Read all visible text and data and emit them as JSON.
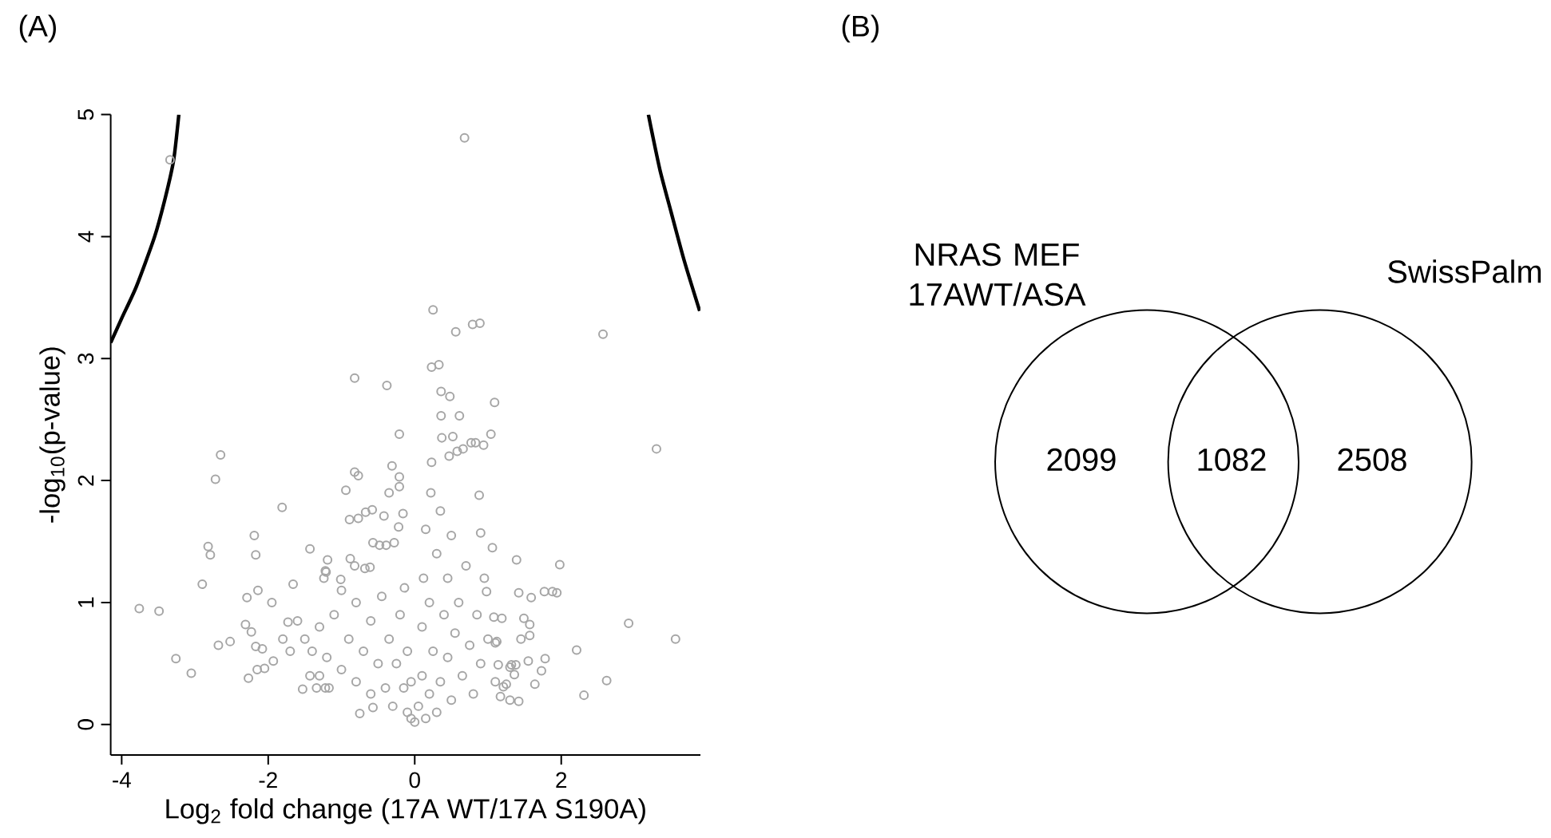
{
  "chart_data": [
    {
      "type": "scatter",
      "title": "(A)",
      "xlabel": "Log$_{2}$ fold change (17A WT/17A S190A)",
      "ylabel": "-log$_{10}$(p-value)",
      "xlim": [
        -4.15,
        3.9
      ],
      "ylim": [
        -0.25,
        5
      ],
      "xticks": [
        -4,
        -2,
        0,
        2
      ],
      "yticks": [
        0,
        1,
        2,
        3,
        4,
        5
      ],
      "marker": "circle",
      "series": [
        {
          "type": "scatter",
          "color": "#a6a6a6",
          "x": [
            0.68,
            -3.34,
            0.25,
            0.56,
            0.79,
            0.89,
            2.57,
            0.23,
            0.33,
            -0.82,
            -0.38,
            0.36,
            0.48,
            1.09,
            1.04,
            0.94,
            3.3,
            0.88,
            0.9,
            1.06,
            1.39,
            1.98,
            1.42,
            1.59,
            1.77,
            1.88,
            1.94,
            1.49,
            1.57,
            2.92,
            3.56,
            1.57,
            1.45,
            2.21,
            1.78,
            1.55,
            1.32,
            1.38,
            1.73,
            1.64,
            2.62,
            2.31,
            1.17,
            1.3,
            1.42,
            1.21,
            1.25,
            1.08,
            1.19,
            0.98,
            1.1,
            1.12,
            1.14,
            1.3,
            1.36,
            -3.76,
            -3.49,
            -3.26,
            -3.05,
            -2.9,
            -2.82,
            -2.79,
            -2.72,
            -2.65,
            -2.68,
            -2.52,
            -2.29,
            -2.31,
            -2.23,
            -2.27,
            -2.19,
            -2.17,
            -2.14,
            -2.17,
            -2.08,
            -2.15,
            -2.05,
            -1.93,
            -1.95,
            -1.81,
            -1.43,
            -1.53,
            -1.66,
            -1.73,
            -1.21,
            -1.24,
            -0.94,
            -0.82,
            -0.77,
            -0.89,
            -0.77,
            -0.67,
            -0.58,
            -0.75,
            -1.34,
            -1.43,
            -0.88,
            -0.82,
            -1.01,
            0.36,
            0.61,
            -0.21,
            0.37,
            0.52,
            0.47,
            0.58,
            0.66,
            0.77,
            0.83,
            0.23,
            -0.31,
            -0.21,
            -0.35,
            -0.21,
            -0.42,
            -0.16,
            -0.22,
            -1.19,
            -1.22,
            -0.57,
            -0.48,
            -0.39,
            -0.28,
            -0.68,
            -0.61,
            -0.14,
            -0.57,
            -1.22,
            -1.17,
            -1.5,
            -1.4,
            -1.3,
            -1.2,
            -1.1,
            -1.0,
            -0.9,
            -0.8,
            -0.8,
            -0.7,
            -0.6,
            -0.6,
            -0.5,
            -0.45,
            -0.4,
            -0.35,
            -0.3,
            -0.25,
            -0.2,
            -0.15,
            -0.1,
            -0.1,
            -0.05,
            -0.05,
            0.0,
            0.05,
            0.1,
            0.1,
            0.12,
            0.15,
            0.15,
            0.2,
            0.2,
            0.22,
            0.25,
            0.3,
            0.3,
            0.35,
            0.35,
            0.4,
            0.45,
            0.45,
            0.5,
            0.5,
            0.55,
            0.6,
            0.65,
            0.7,
            0.75,
            0.8,
            0.85,
            0.9,
            -1.6,
            -1.7,
            -1.8,
            -1.3,
            -1.0,
            1.0,
            1.1,
            0.95
          ],
          "values": [
            4.81,
            4.63,
            3.4,
            3.22,
            3.28,
            3.29,
            3.2,
            2.93,
            2.95,
            2.84,
            2.78,
            2.73,
            2.69,
            2.64,
            2.38,
            2.29,
            2.26,
            1.88,
            1.57,
            1.45,
            1.35,
            1.31,
            1.08,
            1.04,
            1.09,
            1.09,
            1.08,
            0.87,
            0.82,
            0.83,
            0.7,
            0.73,
            0.7,
            0.61,
            0.54,
            0.52,
            0.49,
            0.49,
            0.44,
            0.33,
            0.36,
            0.24,
            0.23,
            0.2,
            0.19,
            0.31,
            0.33,
            0.88,
            0.87,
            1.09,
            0.67,
            0.68,
            0.49,
            0.47,
            0.41,
            0.95,
            0.93,
            0.54,
            0.42,
            1.15,
            1.46,
            1.39,
            2.01,
            2.21,
            0.65,
            0.68,
            1.04,
            0.82,
            0.76,
            0.38,
            1.55,
            1.39,
            1.1,
            0.64,
            0.62,
            0.45,
            0.46,
            0.52,
            1.0,
            1.78,
            1.44,
            0.29,
            1.15,
            0.84,
            1.25,
            1.2,
            1.92,
            2.07,
            2.04,
            1.68,
            1.69,
            1.74,
            1.76,
            0.09,
            0.3,
            0.4,
            1.36,
            1.3,
            1.19,
            2.53,
            2.53,
            2.38,
            2.35,
            2.36,
            2.2,
            2.24,
            2.26,
            2.31,
            2.31,
            2.15,
            2.12,
            2.03,
            1.9,
            1.95,
            1.71,
            1.73,
            1.62,
            1.35,
            1.26,
            1.49,
            1.47,
            1.47,
            1.49,
            1.28,
            1.29,
            1.12,
            0.14,
            0.3,
            0.3,
            0.7,
            0.6,
            0.8,
            0.55,
            0.9,
            0.45,
            0.7,
            1.0,
            0.35,
            0.6,
            0.85,
            0.25,
            0.5,
            1.05,
            0.3,
            0.7,
            0.15,
            0.5,
            0.9,
            0.3,
            0.6,
            0.1,
            0.35,
            0.05,
            0.02,
            0.15,
            0.4,
            0.8,
            1.2,
            1.6,
            0.05,
            0.25,
            1.0,
            1.9,
            0.6,
            1.4,
            0.1,
            1.75,
            0.35,
            0.9,
            1.2,
            0.55,
            0.2,
            1.55,
            0.75,
            1.0,
            0.4,
            1.3,
            0.65,
            0.25,
            0.9,
            0.5,
            0.85,
            0.6,
            0.7,
            0.4,
            1.1,
            0.7,
            0.35,
            1.2
          ]
        },
        {
          "type": "line",
          "color": "#000000",
          "marker": "none",
          "x": [
            -4.15,
            -4.0,
            -3.8,
            -3.55,
            -3.4,
            -3.29,
            -3.22
          ],
          "values": [
            3.13,
            3.33,
            3.59,
            4.0,
            4.33,
            4.63,
            5.0
          ]
        },
        {
          "type": "line",
          "color": "#000000",
          "marker": "none",
          "x": [
            3.19,
            3.24,
            3.35,
            3.5,
            3.68,
            3.89
          ],
          "values": [
            5.0,
            4.85,
            4.54,
            4.2,
            3.8,
            3.39
          ]
        }
      ]
    },
    {
      "type": "other",
      "title": "(B)",
      "categories": [
        "NRAS MEF 17AWT/ASA",
        null,
        "SwissPalm"
      ],
      "values": [
        2099,
        1082,
        2508
      ],
      "data_labels": true
    }
  ]
}
